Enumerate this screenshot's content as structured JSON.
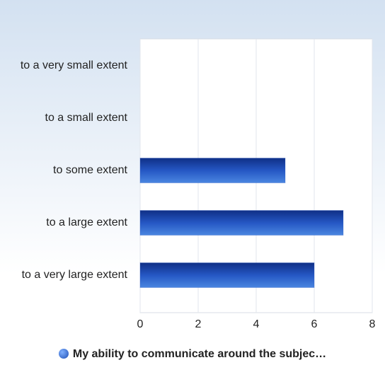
{
  "chart_data": {
    "type": "bar",
    "orientation": "horizontal",
    "categories": [
      "to a very small extent",
      "to a small extent",
      "to some extent",
      "to a large extent",
      "to a very large extent"
    ],
    "series": [
      {
        "name": "My ability to communicate around the subjec…",
        "color": "#2557c4",
        "values": [
          0,
          0,
          5,
          7,
          6
        ]
      }
    ],
    "xlim": [
      0,
      8
    ],
    "xticks": [
      0,
      2,
      4,
      6,
      8
    ],
    "grid": true
  }
}
